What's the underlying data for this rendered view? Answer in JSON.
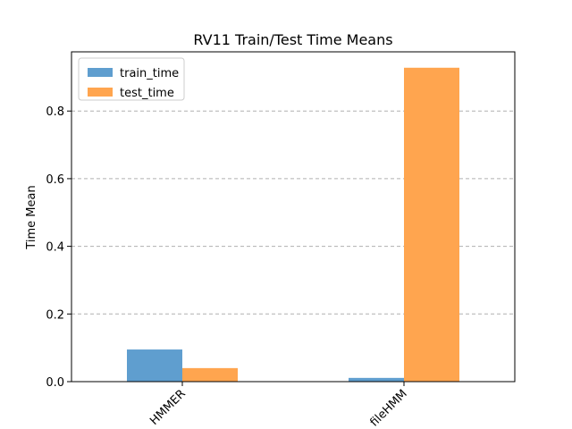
{
  "chart_data": {
    "type": "bar",
    "title": "RV11 Train/Test Time Means",
    "xlabel": "",
    "ylabel": "Time Mean",
    "categories": [
      "HMMER",
      "fileHMM"
    ],
    "series": [
      {
        "name": "train_time",
        "values": [
          0.095,
          0.011
        ],
        "color": "#5f9ecf"
      },
      {
        "name": "test_time",
        "values": [
          0.04,
          0.928
        ],
        "color": "#ffa54f"
      }
    ],
    "ylim": [
      0,
      0.975
    ],
    "yticks": [
      "0.0",
      "0.2",
      "0.4",
      "0.6",
      "0.8"
    ],
    "grid": "y-dashed",
    "legend": "top-left"
  }
}
